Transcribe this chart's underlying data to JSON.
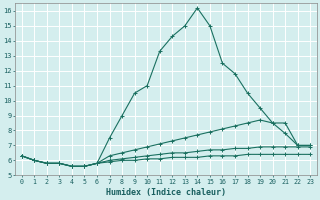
{
  "xlabel": "Humidex (Indice chaleur)",
  "bg_color": "#d4eeee",
  "grid_color": "#b8d8d8",
  "line_color": "#1a7060",
  "xlim": [
    -0.5,
    23.5
  ],
  "ylim": [
    5,
    16.5
  ],
  "yticks": [
    5,
    6,
    7,
    8,
    9,
    10,
    11,
    12,
    13,
    14,
    15,
    16
  ],
  "xticks": [
    0,
    1,
    2,
    3,
    4,
    5,
    6,
    7,
    8,
    9,
    10,
    11,
    12,
    13,
    14,
    15,
    16,
    17,
    18,
    19,
    20,
    21,
    22,
    23
  ],
  "series": [
    {
      "x": [
        0,
        1,
        2,
        3,
        4,
        5,
        6,
        7,
        8,
        9,
        10,
        11,
        12,
        13,
        14,
        15,
        16,
        17,
        18,
        19,
        20,
        21,
        22,
        23
      ],
      "y": [
        6.3,
        6.0,
        5.8,
        5.8,
        5.6,
        5.6,
        5.8,
        7.5,
        9.0,
        10.5,
        11.0,
        13.3,
        14.3,
        15.0,
        16.2,
        15.0,
        12.5,
        11.8,
        10.5,
        9.5,
        8.5,
        8.5,
        7.0,
        7.0
      ]
    },
    {
      "x": [
        0,
        1,
        2,
        3,
        4,
        5,
        6,
        7,
        8,
        9,
        10,
        11,
        12,
        13,
        14,
        15,
        16,
        17,
        18,
        19,
        20,
        21,
        22,
        23
      ],
      "y": [
        6.3,
        6.0,
        5.8,
        5.8,
        5.6,
        5.6,
        5.8,
        6.3,
        6.5,
        6.7,
        6.9,
        7.1,
        7.3,
        7.5,
        7.7,
        7.9,
        8.1,
        8.3,
        8.5,
        8.7,
        8.5,
        7.8,
        7.0,
        7.0
      ]
    },
    {
      "x": [
        0,
        1,
        2,
        3,
        4,
        5,
        6,
        7,
        8,
        9,
        10,
        11,
        12,
        13,
        14,
        15,
        16,
        17,
        18,
        19,
        20,
        21,
        22,
        23
      ],
      "y": [
        6.3,
        6.0,
        5.8,
        5.8,
        5.6,
        5.6,
        5.8,
        6.0,
        6.1,
        6.2,
        6.3,
        6.4,
        6.5,
        6.5,
        6.6,
        6.7,
        6.7,
        6.8,
        6.8,
        6.9,
        6.9,
        6.9,
        6.9,
        6.9
      ]
    },
    {
      "x": [
        0,
        1,
        2,
        3,
        4,
        5,
        6,
        7,
        8,
        9,
        10,
        11,
        12,
        13,
        14,
        15,
        16,
        17,
        18,
        19,
        20,
        21,
        22,
        23
      ],
      "y": [
        6.3,
        6.0,
        5.8,
        5.8,
        5.6,
        5.6,
        5.8,
        5.9,
        6.0,
        6.0,
        6.1,
        6.1,
        6.2,
        6.2,
        6.2,
        6.3,
        6.3,
        6.3,
        6.4,
        6.4,
        6.4,
        6.4,
        6.4,
        6.4
      ]
    }
  ]
}
